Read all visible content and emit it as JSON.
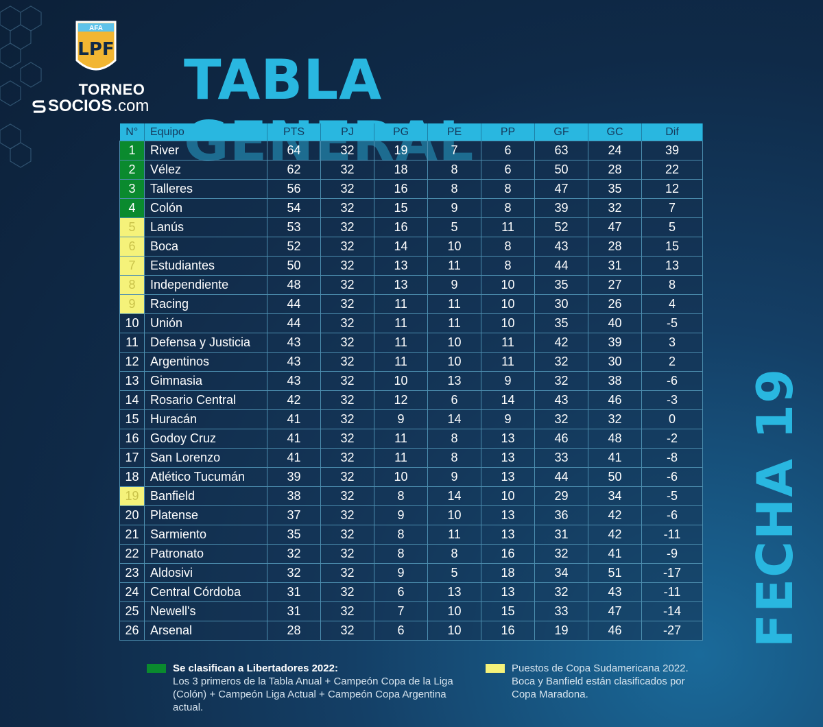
{
  "brand": {
    "afa": "AFA",
    "lpf": "LPF",
    "torneo": "TORNEO",
    "socios": "SOCIOS",
    "dotcom": ".com"
  },
  "title": "TABLA GENERAL",
  "fecha": "FECHA 19",
  "colors": {
    "accent": "#29b7e0",
    "libertadores": "#0a8a2e",
    "sudamericana": "#f5f27a"
  },
  "table": {
    "headers": [
      "N°",
      "Equipo",
      "PTS",
      "PJ",
      "PG",
      "PE",
      "PP",
      "GF",
      "GC",
      "Dif"
    ],
    "rows": [
      {
        "pos": "1",
        "team": "River",
        "pts": "64",
        "pj": "32",
        "pg": "19",
        "pe": "7",
        "pp": "6",
        "gf": "63",
        "gc": "24",
        "dif": "39",
        "zone": "green"
      },
      {
        "pos": "2",
        "team": "Vélez",
        "pts": "62",
        "pj": "32",
        "pg": "18",
        "pe": "8",
        "pp": "6",
        "gf": "50",
        "gc": "28",
        "dif": "22",
        "zone": "green"
      },
      {
        "pos": "3",
        "team": "Talleres",
        "pts": "56",
        "pj": "32",
        "pg": "16",
        "pe": "8",
        "pp": "8",
        "gf": "47",
        "gc": "35",
        "dif": "12",
        "zone": "green"
      },
      {
        "pos": "4",
        "team": "Colón",
        "pts": "54",
        "pj": "32",
        "pg": "15",
        "pe": "9",
        "pp": "8",
        "gf": "39",
        "gc": "32",
        "dif": "7",
        "zone": "green"
      },
      {
        "pos": "5",
        "team": "Lanús",
        "pts": "53",
        "pj": "32",
        "pg": "16",
        "pe": "5",
        "pp": "11",
        "gf": "52",
        "gc": "47",
        "dif": "5",
        "zone": "yellow"
      },
      {
        "pos": "6",
        "team": "Boca",
        "pts": "52",
        "pj": "32",
        "pg": "14",
        "pe": "10",
        "pp": "8",
        "gf": "43",
        "gc": "28",
        "dif": "15",
        "zone": "yellow"
      },
      {
        "pos": "7",
        "team": "Estudiantes",
        "pts": "50",
        "pj": "32",
        "pg": "13",
        "pe": "11",
        "pp": "8",
        "gf": "44",
        "gc": "31",
        "dif": "13",
        "zone": "yellow"
      },
      {
        "pos": "8",
        "team": "Independiente",
        "pts": "48",
        "pj": "32",
        "pg": "13",
        "pe": "9",
        "pp": "10",
        "gf": "35",
        "gc": "27",
        "dif": "8",
        "zone": "yellow"
      },
      {
        "pos": "9",
        "team": "Racing",
        "pts": "44",
        "pj": "32",
        "pg": "11",
        "pe": "11",
        "pp": "10",
        "gf": "30",
        "gc": "26",
        "dif": "4",
        "zone": "yellow"
      },
      {
        "pos": "10",
        "team": "Unión",
        "pts": "44",
        "pj": "32",
        "pg": "11",
        "pe": "11",
        "pp": "10",
        "gf": "35",
        "gc": "40",
        "dif": "-5",
        "zone": ""
      },
      {
        "pos": "11",
        "team": "Defensa y Justicia",
        "pts": "43",
        "pj": "32",
        "pg": "11",
        "pe": "10",
        "pp": "11",
        "gf": "42",
        "gc": "39",
        "dif": "3",
        "zone": ""
      },
      {
        "pos": "12",
        "team": "Argentinos",
        "pts": "43",
        "pj": "32",
        "pg": "11",
        "pe": "10",
        "pp": "11",
        "gf": "32",
        "gc": "30",
        "dif": "2",
        "zone": ""
      },
      {
        "pos": "13",
        "team": "Gimnasia",
        "pts": "43",
        "pj": "32",
        "pg": "10",
        "pe": "13",
        "pp": "9",
        "gf": "32",
        "gc": "38",
        "dif": "-6",
        "zone": ""
      },
      {
        "pos": "14",
        "team": "Rosario Central",
        "pts": "42",
        "pj": "32",
        "pg": "12",
        "pe": "6",
        "pp": "14",
        "gf": "43",
        "gc": "46",
        "dif": "-3",
        "zone": ""
      },
      {
        "pos": "15",
        "team": "Huracán",
        "pts": "41",
        "pj": "32",
        "pg": "9",
        "pe": "14",
        "pp": "9",
        "gf": "32",
        "gc": "32",
        "dif": "0",
        "zone": ""
      },
      {
        "pos": "16",
        "team": "Godoy Cruz",
        "pts": "41",
        "pj": "32",
        "pg": "11",
        "pe": "8",
        "pp": "13",
        "gf": "46",
        "gc": "48",
        "dif": "-2",
        "zone": ""
      },
      {
        "pos": "17",
        "team": "San Lorenzo",
        "pts": "41",
        "pj": "32",
        "pg": "11",
        "pe": "8",
        "pp": "13",
        "gf": "33",
        "gc": "41",
        "dif": "-8",
        "zone": ""
      },
      {
        "pos": "18",
        "team": "Atlético Tucumán",
        "pts": "39",
        "pj": "32",
        "pg": "10",
        "pe": "9",
        "pp": "13",
        "gf": "44",
        "gc": "50",
        "dif": "-6",
        "zone": ""
      },
      {
        "pos": "19",
        "team": "Banfield",
        "pts": "38",
        "pj": "32",
        "pg": "8",
        "pe": "14",
        "pp": "10",
        "gf": "29",
        "gc": "34",
        "dif": "-5",
        "zone": "yellow"
      },
      {
        "pos": "20",
        "team": "Platense",
        "pts": "37",
        "pj": "32",
        "pg": "9",
        "pe": "10",
        "pp": "13",
        "gf": "36",
        "gc": "42",
        "dif": "-6",
        "zone": ""
      },
      {
        "pos": "21",
        "team": "Sarmiento",
        "pts": "35",
        "pj": "32",
        "pg": "8",
        "pe": "11",
        "pp": "13",
        "gf": "31",
        "gc": "42",
        "dif": "-11",
        "zone": ""
      },
      {
        "pos": "22",
        "team": "Patronato",
        "pts": "32",
        "pj": "32",
        "pg": "8",
        "pe": "8",
        "pp": "16",
        "gf": "32",
        "gc": "41",
        "dif": "-9",
        "zone": ""
      },
      {
        "pos": "23",
        "team": "Aldosivi",
        "pts": "32",
        "pj": "32",
        "pg": "9",
        "pe": "5",
        "pp": "18",
        "gf": "34",
        "gc": "51",
        "dif": "-17",
        "zone": ""
      },
      {
        "pos": "24",
        "team": "Central Córdoba",
        "pts": "31",
        "pj": "32",
        "pg": "6",
        "pe": "13",
        "pp": "13",
        "gf": "32",
        "gc": "43",
        "dif": "-11",
        "zone": ""
      },
      {
        "pos": "25",
        "team": "Newell's",
        "pts": "31",
        "pj": "32",
        "pg": "7",
        "pe": "10",
        "pp": "15",
        "gf": "33",
        "gc": "47",
        "dif": "-14",
        "zone": ""
      },
      {
        "pos": "26",
        "team": "Arsenal",
        "pts": "28",
        "pj": "32",
        "pg": "6",
        "pe": "10",
        "pp": "16",
        "gf": "19",
        "gc": "46",
        "dif": "-27",
        "zone": ""
      }
    ]
  },
  "legend": {
    "libertadores_title": "Se clasifican a Libertadores 2022:",
    "libertadores_body": "Los 3 primeros de la Tabla Anual + Campeón Copa de la Liga (Colón) + Campeón Liga Actual + Campeón Copa Argentina actual.",
    "sudamericana_body": "Puestos de Copa Sudamericana 2022. Boca y Banfield están clasificados por Copa Maradona."
  }
}
